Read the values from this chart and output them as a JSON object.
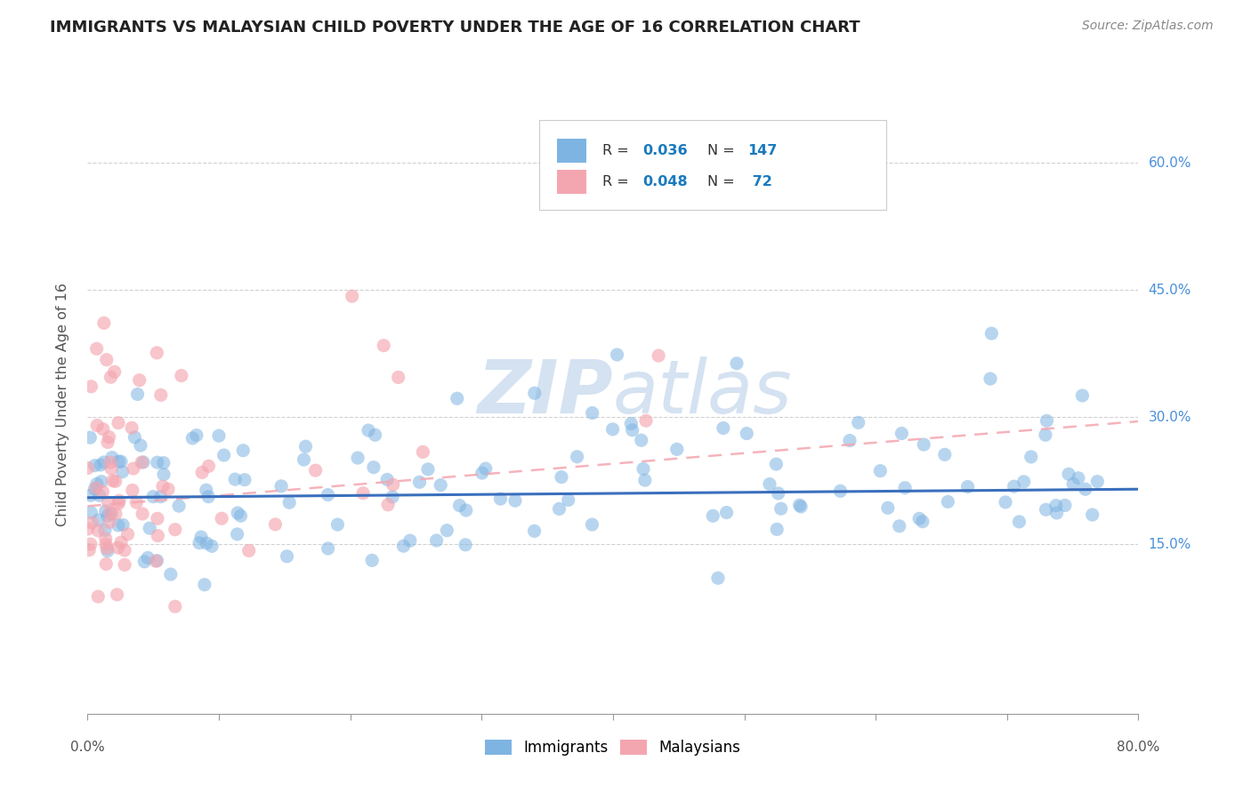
{
  "title": "IMMIGRANTS VS MALAYSIAN CHILD POVERTY UNDER THE AGE OF 16 CORRELATION CHART",
  "source": "Source: ZipAtlas.com",
  "ylabel": "Child Poverty Under the Age of 16",
  "ytick_labels": [
    "15.0%",
    "30.0%",
    "45.0%",
    "60.0%"
  ],
  "ytick_values": [
    0.15,
    0.3,
    0.45,
    0.6
  ],
  "xlim": [
    0.0,
    0.8
  ],
  "ylim": [
    -0.05,
    0.68
  ],
  "immigrants_color": "#7eb4e2",
  "malaysians_color": "#f4a6b0",
  "immigrants_trend_color": "#3a6fbd",
  "malaysians_trend_color": "#e87a90",
  "watermark_color": "#d0dff0",
  "R_immigrants": 0.036,
  "N_immigrants": 147,
  "R_malaysians": 0.048,
  "N_malaysians": 72,
  "imm_trend_start_y": 0.205,
  "imm_trend_end_y": 0.215,
  "mal_trend_start_y": 0.195,
  "mal_trend_end_y": 0.295
}
